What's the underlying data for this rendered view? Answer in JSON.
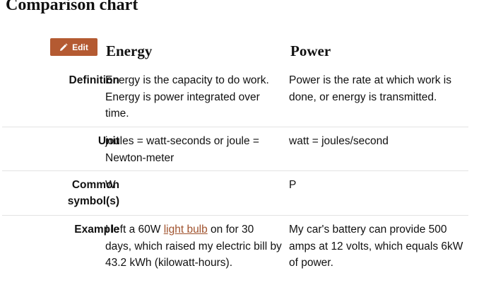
{
  "title": "Comparison chart",
  "edit_button": {
    "label": "Edit",
    "icon": "pencil-icon"
  },
  "columns": {
    "energy": "Energy",
    "power": "Power"
  },
  "rows": [
    {
      "label": "Definition",
      "energy": "Energy is the capacity to do work. Energy is power integrated over time.",
      "power": "Power is the rate at which work is done, or energy is transmitted."
    },
    {
      "label": "Unit",
      "energy": "joules = watt-seconds or joule = Newton-meter",
      "power": "watt = joules/second"
    },
    {
      "label": "Common symbol(s)",
      "energy": "W",
      "power": "P"
    },
    {
      "label": "Example",
      "energy_before_link": "I left a 60W ",
      "energy_link": "light bulb",
      "energy_after_link": " on for 30 days, which raised my electric bill by 43.2 kWh (kilowatt-hours).",
      "power": "My car's battery can provide 500 amps at 12 volts, which equals 6kW of power."
    }
  ],
  "colors": {
    "edit_button_bg": "#b45a32",
    "link": "#a0522d",
    "divider": "#e3e3e3"
  }
}
